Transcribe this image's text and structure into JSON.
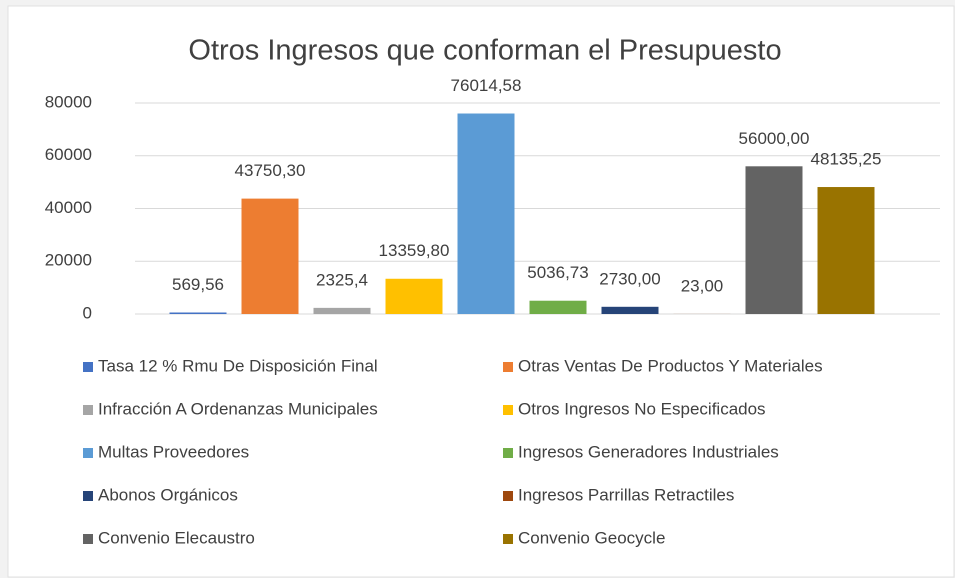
{
  "chart_data": {
    "type": "bar",
    "title": "Otros Ingresos que conforman el Presupuesto",
    "categories": [
      null
    ],
    "series": [
      {
        "name": "Tasa 12 % Rmu  De Disposición Final",
        "color": "#4472c4",
        "values": [
          569.56
        ],
        "value_labels": [
          "569,56"
        ]
      },
      {
        "name": "Otras Ventas De Productos Y Materiales",
        "color": "#ed7d31",
        "values": [
          43750.3
        ],
        "value_labels": [
          "43750,30"
        ]
      },
      {
        "name": "Infracción A Ordenanzas Municipales",
        "color": "#a5a5a5",
        "values": [
          2325.4
        ],
        "value_labels": [
          "2325,4"
        ]
      },
      {
        "name": "Otros Ingresos No Especificados",
        "color": "#ffc000",
        "values": [
          13359.8
        ],
        "value_labels": [
          "13359,80"
        ]
      },
      {
        "name": "Multas Proveedores",
        "color": "#5b9bd5",
        "values": [
          76014.58
        ],
        "value_labels": [
          "76014,58"
        ]
      },
      {
        "name": "Ingresos Generadores  Industriales",
        "color": "#70ad47",
        "values": [
          5036.73
        ],
        "value_labels": [
          "5036,73"
        ]
      },
      {
        "name": "Abonos Orgánicos",
        "color": "#264478",
        "values": [
          2730.0
        ],
        "value_labels": [
          "2730,00"
        ]
      },
      {
        "name": "Ingresos Parrillas Retractiles",
        "color": "#9e480e",
        "values": [
          23.0
        ],
        "value_labels": [
          "23,00"
        ]
      },
      {
        "name": "Convenio Elecaustro",
        "color": "#636363",
        "values": [
          56000.0
        ],
        "value_labels": [
          "56000,00"
        ]
      },
      {
        "name": "Convenio Geocycle",
        "color": "#997300",
        "values": [
          48135.25
        ],
        "value_labels": [
          "48135,25"
        ]
      }
    ],
    "ylim": [
      0,
      80000
    ],
    "yticks": [
      0,
      20000,
      40000,
      60000,
      80000
    ],
    "grid": true
  }
}
